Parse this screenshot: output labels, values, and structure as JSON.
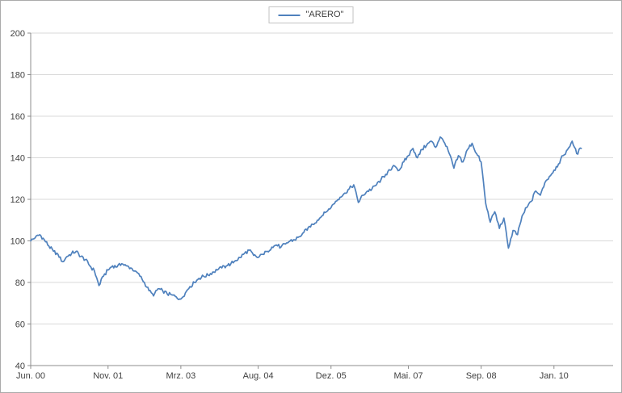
{
  "page": {
    "background": "#ffffff",
    "border_color": "#ababab"
  },
  "legend": {
    "label": "\"ARERO\"",
    "line_color": "#4f81bd"
  },
  "chart_data": {
    "type": "line",
    "title": "",
    "xlabel": "",
    "ylabel": "",
    "grid": "horizontal",
    "legend_position": "top-center",
    "line_color": "#4f81bd",
    "grid_color": "#d9d9d9",
    "axis_color": "#8c8c8c",
    "label_color": "#3f3f3f",
    "ylim": [
      40,
      200
    ],
    "xlim": [
      0,
      128
    ],
    "y_ticks": [
      40,
      60,
      80,
      100,
      120,
      140,
      160,
      180,
      200
    ],
    "x_ticks": [
      {
        "pos": 0,
        "label": "Jun. 00"
      },
      {
        "pos": 17,
        "label": "Nov. 01"
      },
      {
        "pos": 33,
        "label": "Mrz. 03"
      },
      {
        "pos": 50,
        "label": "Aug. 04"
      },
      {
        "pos": 66,
        "label": "Dez. 05"
      },
      {
        "pos": 83,
        "label": "Mai. 07"
      },
      {
        "pos": 99,
        "label": "Sep. 08"
      },
      {
        "pos": 115,
        "label": "Jan. 10"
      }
    ],
    "jitter": 0.9,
    "series": [
      {
        "name": "\"ARERO\"",
        "color": "#4f81bd",
        "x_start": 0,
        "x_step": 1,
        "x_unit": "months since Jun. 2000",
        "values": [
          100,
          101.5,
          103,
          100.5,
          97.5,
          95,
          93.5,
          90,
          92.5,
          94,
          95,
          92.5,
          91,
          88,
          85.5,
          78.5,
          83,
          86,
          88,
          87.5,
          89,
          88,
          87,
          85.5,
          83,
          80,
          76,
          73.5,
          77,
          76,
          74.5,
          74,
          73,
          72,
          75,
          78,
          80,
          82,
          83,
          83.5,
          85,
          86,
          87,
          88,
          89,
          90.5,
          92,
          94,
          95.5,
          93,
          92,
          93.5,
          95,
          97,
          98,
          97,
          98.5,
          100,
          100.5,
          102,
          104,
          106.5,
          108,
          110,
          112,
          114,
          116,
          119,
          121,
          123,
          125,
          127,
          118.5,
          122,
          124,
          125,
          127,
          129.5,
          132,
          134,
          136,
          134,
          138,
          141,
          144.5,
          140,
          144,
          146,
          148,
          145,
          150,
          147,
          142,
          135,
          141,
          138,
          144,
          147,
          142,
          138,
          118,
          109,
          114,
          106,
          111,
          96.5,
          105,
          103,
          112,
          116,
          119,
          124,
          122,
          128,
          131,
          134,
          137,
          141,
          144,
          148,
          142,
          144.5
        ]
      }
    ]
  }
}
